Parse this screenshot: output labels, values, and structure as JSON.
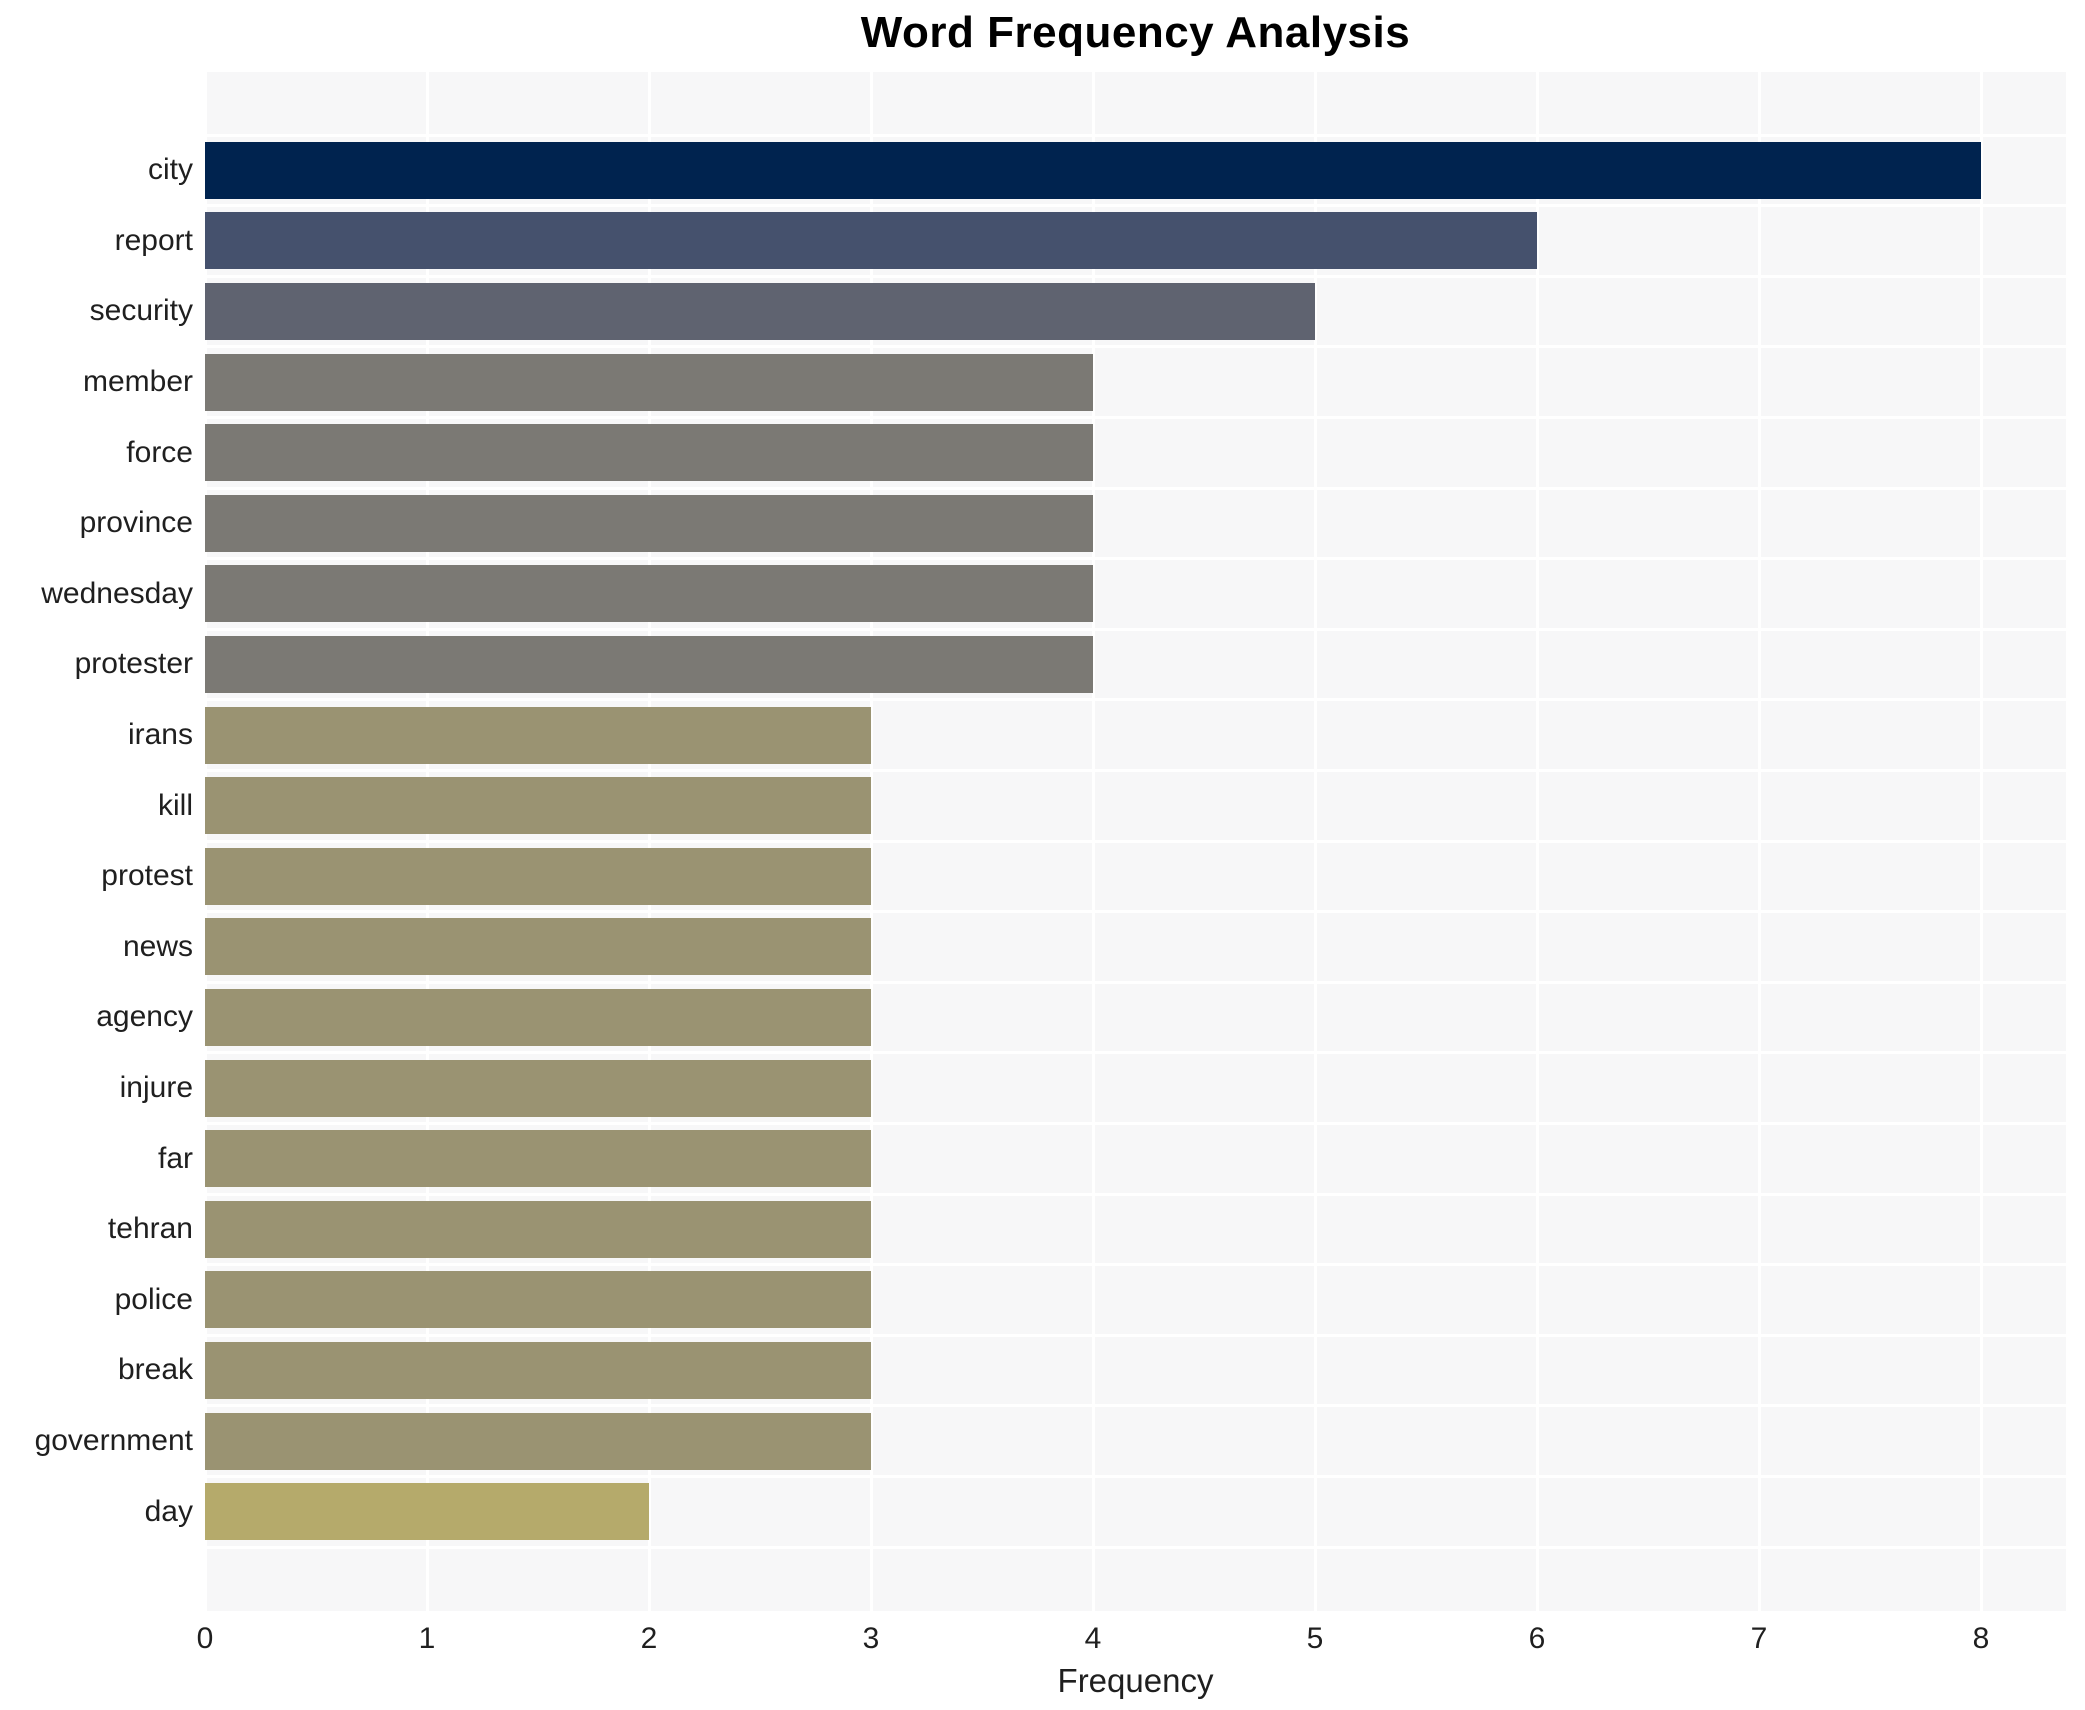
{
  "chart_data": {
    "type": "bar",
    "orientation": "horizontal",
    "title": "Word Frequency Analysis",
    "xlabel": "Frequency",
    "ylabel": "",
    "categories": [
      "city",
      "report",
      "security",
      "member",
      "force",
      "province",
      "wednesday",
      "protester",
      "irans",
      "kill",
      "protest",
      "news",
      "agency",
      "injure",
      "far",
      "tehran",
      "police",
      "break",
      "government",
      "day"
    ],
    "values": [
      8,
      6,
      5,
      4,
      4,
      4,
      4,
      4,
      3,
      3,
      3,
      3,
      3,
      3,
      3,
      3,
      3,
      3,
      3,
      2
    ],
    "bar_colors": [
      "#00234f",
      "#45516d",
      "#5f6370",
      "#7b7974",
      "#7b7974",
      "#7b7974",
      "#7b7974",
      "#7b7974",
      "#9a9372",
      "#9a9372",
      "#9a9372",
      "#9a9372",
      "#9a9372",
      "#9a9372",
      "#9a9372",
      "#9a9372",
      "#9a9372",
      "#9a9372",
      "#9a9372",
      "#b5aa6b"
    ],
    "x_ticks": [
      "0",
      "1",
      "2",
      "3",
      "4",
      "5",
      "6",
      "7",
      "8"
    ],
    "xlim": [
      0,
      8.38
    ],
    "grid": true,
    "grid_color": "#ffffff",
    "plot_background": "#f7f7f8",
    "legend": false
  }
}
